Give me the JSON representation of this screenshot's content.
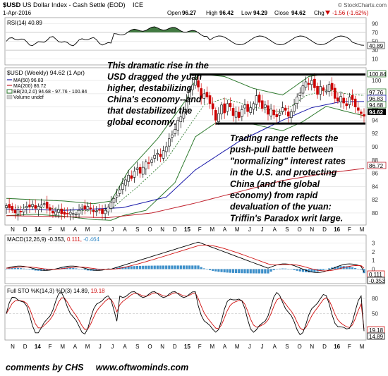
{
  "header": {
    "symbol": "$USD",
    "description": "US Dollar Index - Cash Settle (EOD)",
    "exchange": "ICE",
    "date": "1-Apr-2016",
    "watermark": "© StockCharts.com",
    "open_label": "Open",
    "open": "96.27",
    "high_label": "High",
    "high": "96.42",
    "low_label": "Low",
    "low": "94.29",
    "close_label": "Close",
    "close": "94.62",
    "chg_label": "Chg",
    "chg": "-1.56 (-1.62%)",
    "chg_icon": "down-triangle"
  },
  "rsi": {
    "label": "RSI(14) 40.89",
    "last_label": "40.89",
    "levels": [
      "90",
      "70",
      "50",
      "30",
      "10"
    ]
  },
  "price_panel": {
    "title": "$USD (Weekly) 94.62 (1 Apr)",
    "legend": [
      "MA(50) 96.83",
      "MA(200) 86.72",
      "BB(20,2.0) 94.68 - 97.76 - 100.84",
      "Volume undef"
    ],
    "y_ticks": [
      "100",
      "98",
      "96",
      "94",
      "92",
      "90",
      "88",
      "86",
      "84",
      "82",
      "80"
    ],
    "value_tags": [
      "100.84",
      "97.76",
      "96.83",
      "94.68",
      "94.62",
      "86.72"
    ]
  },
  "annotations": {
    "rise": [
      "This dramatic rise in the",
      "USD dragged the yuan",
      "higher, destabilizing",
      "China's economy--and",
      "that destabilized the",
      "global economy."
    ],
    "range": [
      "Trading range reflects the",
      "push-pull battle between",
      "\"normalizing\" interest rates",
      "in the U.S. and protecting",
      "China (and the global",
      "economy) from rapid",
      "devaluation of the yuan:",
      "Triffin's Paradox writ large."
    ]
  },
  "x_axis": [
    "N",
    "D",
    "14",
    "F",
    "M",
    "A",
    "M",
    "J",
    "J",
    "A",
    "S",
    "O",
    "N",
    "D",
    "15",
    "F",
    "M",
    "A",
    "M",
    "J",
    "J",
    "A",
    "S",
    "O",
    "N",
    "D",
    "16",
    "F",
    "M"
  ],
  "macd": {
    "label_text": "MACD(12,26,9)",
    "label_v1": "-0.353,",
    "label_v2": "0.111,",
    "label_v3": "-0.464",
    "y_ticks": [
      "3",
      "2",
      "1",
      "0",
      "-1"
    ],
    "tag_signal": "0.111",
    "tag_macd": "-0.353"
  },
  "sto": {
    "label_text": "Full STO %K(14,3) %D(3)",
    "label_k": "14.89,",
    "label_d": "19.18",
    "y_ticks": [
      "80",
      "50",
      "20"
    ],
    "tag_d": "19.18",
    "tag_k": "14.89"
  },
  "footer": "comments by CHS     www.oftwominds.com",
  "colors": {
    "ma50": "#1a1aaa",
    "ma200": "#c0202c",
    "bollinger": "#2e7a2e",
    "ma20": "#2e7a2e",
    "candle_up": "#000000",
    "candle_down": "#cc0000",
    "rsi_fill": "#2e6b2e",
    "macd_hist": "#3d8fc9",
    "signal": "#d01010"
  },
  "chart_data": {
    "type": "candlestick",
    "title": "$USD (Weekly) 94.62 (1 Apr)",
    "date_range": [
      "2013-11",
      "2016-04"
    ],
    "x_tick_labels": [
      "N",
      "D",
      "14",
      "F",
      "M",
      "A",
      "M",
      "J",
      "J",
      "A",
      "S",
      "O",
      "N",
      "D",
      "15",
      "F",
      "M",
      "A",
      "M",
      "J",
      "J",
      "A",
      "S",
      "O",
      "N",
      "D",
      "16",
      "F",
      "M"
    ],
    "price_ylim": [
      78.5,
      101.5
    ],
    "close_path": [
      [
        0,
        81.1
      ],
      [
        1,
        80.8
      ],
      [
        2,
        80.4
      ],
      [
        3,
        80.0
      ],
      [
        4,
        80.5
      ],
      [
        5,
        80.2
      ],
      [
        6,
        80.6
      ],
      [
        7,
        81.0
      ],
      [
        8,
        80.9
      ],
      [
        9,
        81.3
      ],
      [
        10,
        80.7
      ],
      [
        11,
        81.0
      ],
      [
        12,
        81.2
      ],
      [
        13,
        81.4
      ],
      [
        14,
        80.7
      ],
      [
        15,
        80.4
      ],
      [
        16,
        80.0
      ],
      [
        17,
        80.2
      ],
      [
        18,
        80.5
      ],
      [
        19,
        79.9
      ],
      [
        20,
        79.8
      ],
      [
        21,
        79.9
      ],
      [
        22,
        80.1
      ],
      [
        23,
        79.9
      ],
      [
        24,
        79.8
      ],
      [
        25,
        80.4
      ],
      [
        26,
        80.9
      ],
      [
        27,
        80.6
      ],
      [
        28,
        81.0
      ],
      [
        29,
        80.6
      ],
      [
        30,
        80.2
      ],
      [
        31,
        80.3
      ],
      [
        32,
        80.4
      ],
      [
        33,
        79.9
      ],
      [
        34,
        80.4
      ],
      [
        35,
        80.9
      ],
      [
        36,
        81.6
      ],
      [
        37,
        82.2
      ],
      [
        38,
        82.7
      ],
      [
        39,
        83.5
      ],
      [
        40,
        84.4
      ],
      [
        41,
        85.0
      ],
      [
        42,
        85.7
      ],
      [
        43,
        85.2
      ],
      [
        44,
        86.3
      ],
      [
        45,
        86.8
      ],
      [
        46,
        86.0
      ],
      [
        47,
        86.9
      ],
      [
        48,
        87.7
      ],
      [
        49,
        87.5
      ],
      [
        50,
        88.0
      ],
      [
        51,
        88.7
      ],
      [
        52,
        89.0
      ],
      [
        53,
        88.5
      ],
      [
        54,
        89.4
      ],
      [
        55,
        90.0
      ],
      [
        56,
        91.2
      ],
      [
        57,
        91.8
      ],
      [
        58,
        92.6
      ],
      [
        59,
        94.0
      ],
      [
        60,
        94.5
      ],
      [
        61,
        95.3
      ],
      [
        62,
        97.0
      ],
      [
        63,
        98.4
      ],
      [
        64,
        99.3
      ],
      [
        65,
        100.2
      ],
      [
        66,
        99.0
      ],
      [
        67,
        97.3
      ],
      [
        68,
        98.0
      ],
      [
        69,
        97.5
      ],
      [
        70,
        96.5
      ],
      [
        71,
        95.7
      ],
      [
        72,
        94.0
      ],
      [
        73,
        95.0
      ],
      [
        74,
        96.3
      ],
      [
        75,
        95.1
      ],
      [
        76,
        96.5
      ],
      [
        77,
        96.0
      ],
      [
        78,
        94.7
      ],
      [
        79,
        95.3
      ],
      [
        80,
        94.4
      ],
      [
        81,
        95.6
      ],
      [
        82,
        96.3
      ],
      [
        83,
        95.3
      ],
      [
        84,
        95.9
      ],
      [
        85,
        96.5
      ],
      [
        86,
        97.7
      ],
      [
        87,
        96.7
      ],
      [
        88,
        95.8
      ],
      [
        89,
        96.3
      ],
      [
        90,
        94.9
      ],
      [
        91,
        95.7
      ],
      [
        92,
        94.8
      ],
      [
        93,
        94.5
      ],
      [
        94,
        95.1
      ],
      [
        95,
        95.9
      ],
      [
        96,
        95.5
      ],
      [
        97,
        94.6
      ],
      [
        98,
        95.3
      ],
      [
        99,
        96.3
      ],
      [
        100,
        97.5
      ],
      [
        101,
        98.1
      ],
      [
        102,
        99.2
      ],
      [
        103,
        99.8
      ],
      [
        104,
        99.4
      ],
      [
        105,
        100.0
      ],
      [
        106,
        98.9
      ],
      [
        107,
        97.9
      ],
      [
        108,
        99.1
      ],
      [
        109,
        98.5
      ],
      [
        110,
        98.4
      ],
      [
        111,
        99.4
      ],
      [
        112,
        98.6
      ],
      [
        113,
        97.3
      ],
      [
        114,
        96.9
      ],
      [
        115,
        97.6
      ],
      [
        116,
        96.6
      ],
      [
        117,
        96.2
      ],
      [
        118,
        97.5
      ],
      [
        119,
        97.1
      ],
      [
        120,
        96.0
      ],
      [
        121,
        95.5
      ],
      [
        122,
        95.0
      ],
      [
        123,
        94.6
      ]
    ],
    "ma50_path": [
      [
        0,
        80.6
      ],
      [
        20,
        80.4
      ],
      [
        40,
        80.8
      ],
      [
        55,
        82.4
      ],
      [
        65,
        86.5
      ],
      [
        80,
        90.8
      ],
      [
        95,
        94.0
      ],
      [
        105,
        95.9
      ],
      [
        115,
        96.8
      ],
      [
        123,
        96.83
      ]
    ],
    "ma200_path": [
      [
        0,
        79.6
      ],
      [
        35,
        79.3
      ],
      [
        50,
        80.0
      ],
      [
        65,
        81.5
      ],
      [
        80,
        83.2
      ],
      [
        95,
        84.9
      ],
      [
        110,
        86.0
      ],
      [
        123,
        86.72
      ]
    ],
    "ma20_path": [
      [
        0,
        80.8
      ],
      [
        10,
        80.9
      ],
      [
        20,
        80.5
      ],
      [
        30,
        80.3
      ],
      [
        36,
        80.6
      ],
      [
        45,
        83.9
      ],
      [
        55,
        88.0
      ],
      [
        63,
        93.2
      ],
      [
        68,
        96.3
      ],
      [
        75,
        97.3
      ],
      [
        85,
        96.0
      ],
      [
        95,
        95.2
      ],
      [
        103,
        97.7
      ],
      [
        110,
        98.6
      ],
      [
        118,
        97.9
      ],
      [
        123,
        97.76
      ]
    ],
    "bb_upper_path": [
      [
        0,
        82.2
      ],
      [
        10,
        82.0
      ],
      [
        20,
        81.8
      ],
      [
        30,
        81.4
      ],
      [
        36,
        81.8
      ],
      [
        42,
        86.4
      ],
      [
        52,
        91.2
      ],
      [
        62,
        97.2
      ],
      [
        66,
        101.0
      ],
      [
        75,
        100.6
      ],
      [
        85,
        98.8
      ],
      [
        95,
        97.8
      ],
      [
        104,
        100.6
      ],
      [
        110,
        101.0
      ],
      [
        118,
        100.9
      ],
      [
        123,
        100.84
      ]
    ],
    "bb_lower_path": [
      [
        0,
        79.6
      ],
      [
        10,
        79.8
      ],
      [
        20,
        79.5
      ],
      [
        30,
        79.0
      ],
      [
        36,
        78.9
      ],
      [
        40,
        79.6
      ],
      [
        48,
        80.4
      ],
      [
        58,
        84.6
      ],
      [
        65,
        91.5
      ],
      [
        72,
        93.6
      ],
      [
        85,
        93.4
      ],
      [
        95,
        92.4
      ],
      [
        102,
        93.8
      ],
      [
        110,
        96.1
      ],
      [
        118,
        95.2
      ],
      [
        123,
        94.68
      ]
    ],
    "range_box": {
      "upper": 100.9,
      "lower": 93.5
    },
    "rsi": {
      "ylim": [
        0,
        100
      ],
      "last": 40.89
    },
    "macd": {
      "ylim": [
        -1.5,
        3.6
      ],
      "last_macd": -0.353,
      "last_signal": 0.111,
      "last_hist": -0.464
    },
    "sto": {
      "ylim": [
        0,
        100
      ],
      "last_k": 14.89,
      "last_d": 19.18
    }
  }
}
